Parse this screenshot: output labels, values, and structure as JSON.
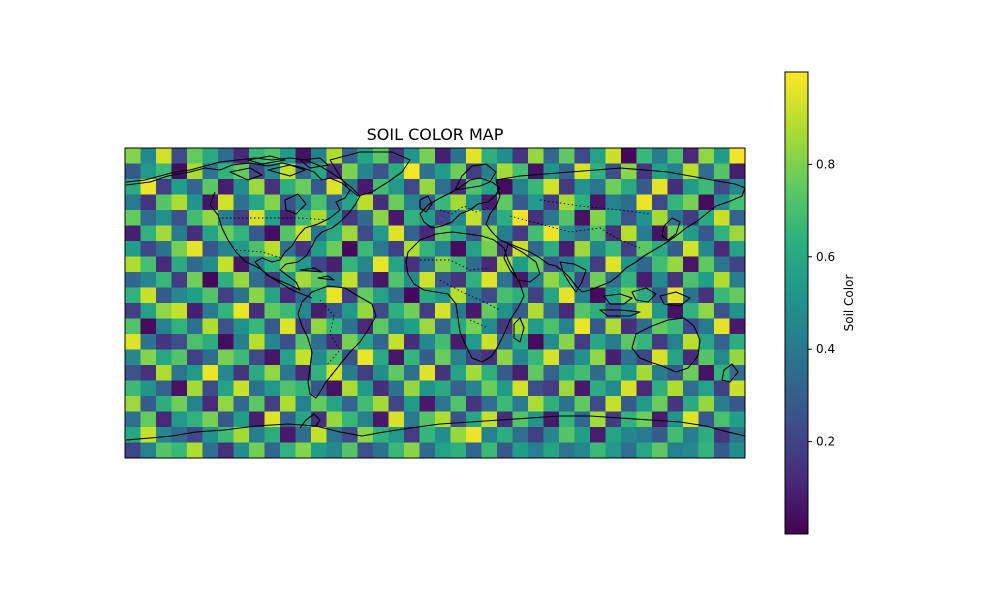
{
  "chart_data": {
    "type": "heatmap",
    "title": "SOIL COLOR MAP",
    "colorbar": {
      "label": "Soil Color",
      "ticks": [
        0.2,
        0.4,
        0.6,
        0.8
      ],
      "range": [
        0.0,
        1.0
      ],
      "colormap": "viridis"
    },
    "grid": {
      "rows": 20,
      "cols": 40,
      "values": [
        [
          0.81,
          0.47,
          0.93,
          0.23,
          0.76,
          0.61,
          0.35,
          0.12,
          0.66,
          0.72,
          0.54,
          0.05,
          0.44,
          0.88,
          0.31,
          0.58,
          0.74,
          0.16,
          0.52,
          0.79,
          0.09,
          0.38,
          0.96,
          0.63,
          0.49,
          0.15,
          0.84,
          0.34,
          0.75,
          0.22,
          0.57,
          0.92,
          0.02,
          0.67,
          0.42,
          0.71,
          0.11,
          0.83,
          0.55,
          0.98
        ],
        [
          0.27,
          0.53,
          0.68,
          0.04,
          0.87,
          0.39,
          0.65,
          0.76,
          0.21,
          0.48,
          0.91,
          0.33,
          0.59,
          0.13,
          0.8,
          0.46,
          0.26,
          0.62,
          0.99,
          0.37,
          0.55,
          0.78,
          0.18,
          0.43,
          0.86,
          0.7,
          0.05,
          0.51,
          0.32,
          0.94,
          0.64,
          0.24,
          0.82,
          0.15,
          0.57,
          0.45,
          0.89,
          0.35,
          0.73,
          0.08
        ],
        [
          0.61,
          0.97,
          0.19,
          0.56,
          0.33,
          0.74,
          0.08,
          0.49,
          0.85,
          0.14,
          0.63,
          0.77,
          0.28,
          0.95,
          0.41,
          0.07,
          0.69,
          0.53,
          0.22,
          0.84,
          0.36,
          0.12,
          0.72,
          0.58,
          0.03,
          0.45,
          0.67,
          0.93,
          0.17,
          0.52,
          0.39,
          0.78,
          0.61,
          0.29,
          0.96,
          0.13,
          0.54,
          0.68,
          0.23,
          0.47
        ],
        [
          0.42,
          0.15,
          0.73,
          0.88,
          0.52,
          0.06,
          0.93,
          0.37,
          0.59,
          0.81,
          0.25,
          0.46,
          0.71,
          0.34,
          0.58,
          0.9,
          0.13,
          0.77,
          0.45,
          0.31,
          0.67,
          0.86,
          0.49,
          0.08,
          0.75,
          0.29,
          0.54,
          0.18,
          0.87,
          0.63,
          0.06,
          0.44,
          0.35,
          0.97,
          0.22,
          0.66,
          0.79,
          0.03,
          0.48,
          0.7
        ],
        [
          0.76,
          0.35,
          0.5,
          0.25,
          0.69,
          0.83,
          0.42,
          0.18,
          0.94,
          0.57,
          0.09,
          0.68,
          0.87,
          0.52,
          0.16,
          0.34,
          0.82,
          0.07,
          0.64,
          0.56,
          0.21,
          0.47,
          0.91,
          0.35,
          0.62,
          0.98,
          0.14,
          0.4,
          0.73,
          0.05,
          0.81,
          0.58,
          0.26,
          0.51,
          0.86,
          0.38,
          0.17,
          0.61,
          0.92,
          0.32
        ],
        [
          0.09,
          0.64,
          0.86,
          0.42,
          0.13,
          0.58,
          0.77,
          0.65,
          0.28,
          0.04,
          0.73,
          0.92,
          0.39,
          0.61,
          0.85,
          0.23,
          0.53,
          0.95,
          0.31,
          0.11,
          0.74,
          0.59,
          0.26,
          0.83,
          0.43,
          0.17,
          0.69,
          0.97,
          0.5,
          0.36,
          0.72,
          0.14,
          0.89,
          0.42,
          0.05,
          0.78,
          0.55,
          0.27,
          0.64,
          0.85
        ],
        [
          0.55,
          0.21,
          0.38,
          0.79,
          0.96,
          0.27,
          0.45,
          0.53,
          0.71,
          0.89,
          0.37,
          0.16,
          0.56,
          0.77,
          0.02,
          0.68,
          0.41,
          0.19,
          0.88,
          0.65,
          0.45,
          0.03,
          0.57,
          0.79,
          0.16,
          0.92,
          0.33,
          0.62,
          0.08,
          0.85,
          0.46,
          0.67,
          0.19,
          0.74,
          0.61,
          0.29,
          0.93,
          0.47,
          0.12,
          0.58
        ],
        [
          0.88,
          0.7,
          0.12,
          0.61,
          0.34,
          0.49,
          0.91,
          0.06,
          0.44,
          0.63,
          0.79,
          0.54,
          0.21,
          0.09,
          0.66,
          0.47,
          0.97,
          0.58,
          0.14,
          0.37,
          0.82,
          0.68,
          0.35,
          0.12,
          0.87,
          0.54,
          0.76,
          0.24,
          0.41,
          0.59,
          0.18,
          0.95,
          0.52,
          0.33,
          0.69,
          0.84,
          0.06,
          0.75,
          0.39,
          0.2
        ],
        [
          0.33,
          0.46,
          0.67,
          0.18,
          0.78,
          0.02,
          0.63,
          0.84,
          0.35,
          0.17,
          0.52,
          0.86,
          0.74,
          0.43,
          0.91,
          0.29,
          0.06,
          0.72,
          0.49,
          0.93,
          0.28,
          0.16,
          0.64,
          0.95,
          0.38,
          0.07,
          0.45,
          0.83,
          0.67,
          0.22,
          0.78,
          0.36,
          0.65,
          0.08,
          0.47,
          0.15,
          0.71,
          0.56,
          0.88,
          0.43
        ],
        [
          0.64,
          0.92,
          0.28,
          0.47,
          0.56,
          0.72,
          0.19,
          0.38,
          0.82,
          0.58,
          0.11,
          0.34,
          0.62,
          0.97,
          0.19,
          0.76,
          0.57,
          0.35,
          0.02,
          0.61,
          0.52,
          0.89,
          0.41,
          0.23,
          0.7,
          0.63,
          0.19,
          0.58,
          0.96,
          0.44,
          0.03,
          0.55,
          0.81,
          0.62,
          0.27,
          0.96,
          0.38,
          0.14,
          0.67,
          0.76
        ],
        [
          0.19,
          0.57,
          0.83,
          0.91,
          0.09,
          0.41,
          0.66,
          0.97,
          0.13,
          0.75,
          0.68,
          0.47,
          0.08,
          0.28,
          0.53,
          0.84,
          0.22,
          0.63,
          0.78,
          0.18,
          0.94,
          0.41,
          0.07,
          0.76,
          0.51,
          0.29,
          0.88,
          0.36,
          0.12,
          0.73,
          0.63,
          0.24,
          0.46,
          0.91,
          0.53,
          0.05,
          0.64,
          0.83,
          0.25,
          0.51
        ],
        [
          0.72,
          0.03,
          0.44,
          0.65,
          0.37,
          0.88,
          0.25,
          0.51,
          0.67,
          0.29,
          0.95,
          0.19,
          0.83,
          0.66,
          0.38,
          0.11,
          0.74,
          0.44,
          0.56,
          0.85,
          0.33,
          0.62,
          0.79,
          0.48,
          0.16,
          0.85,
          0.54,
          0.71,
          0.45,
          0.97,
          0.28,
          0.87,
          0.13,
          0.35,
          0.75,
          0.68,
          0.22,
          0.41,
          0.96,
          0.07
        ],
        [
          0.95,
          0.38,
          0.16,
          0.24,
          0.71,
          0.62,
          0.04,
          0.43,
          0.89,
          0.46,
          0.24,
          0.73,
          0.35,
          0.14,
          0.79,
          0.58,
          0.33,
          0.91,
          0.13,
          0.47,
          0.69,
          0.08,
          0.54,
          0.92,
          0.37,
          0.6,
          0.03,
          0.49,
          0.82,
          0.18,
          0.59,
          0.42,
          0.74,
          0.66,
          0.17,
          0.44,
          0.89,
          0.59,
          0.31,
          0.62
        ],
        [
          0.47,
          0.81,
          0.59,
          0.73,
          0.19,
          0.35,
          0.79,
          0.68,
          0.22,
          0.06,
          0.57,
          0.91,
          0.48,
          0.71,
          0.25,
          0.97,
          0.61,
          0.06,
          0.66,
          0.29,
          0.77,
          0.45,
          0.21,
          0.14,
          0.82,
          0.46,
          0.67,
          0.94,
          0.27,
          0.51,
          0.83,
          0.09,
          0.37,
          0.21,
          0.94,
          0.58,
          0.11,
          0.73,
          0.48,
          0.84
        ],
        [
          0.26,
          0.14,
          0.88,
          0.39,
          0.54,
          0.97,
          0.47,
          0.15,
          0.61,
          0.83,
          0.39,
          0.12,
          0.64,
          0.93,
          0.42,
          0.18,
          0.49,
          0.75,
          0.37,
          0.95,
          0.14,
          0.58,
          0.86,
          0.63,
          0.28,
          0.09,
          0.75,
          0.32,
          0.58,
          0.69,
          0.34,
          0.71,
          0.56,
          0.86,
          0.42,
          0.27,
          0.77,
          0.05,
          0.65,
          0.35
        ],
        [
          0.68,
          0.52,
          0.31,
          0.05,
          0.86,
          0.23,
          0.58,
          0.92,
          0.37,
          0.53,
          0.72,
          0.66,
          0.27,
          0.05,
          0.87,
          0.54,
          0.13,
          0.38,
          0.84,
          0.52,
          0.61,
          0.31,
          0.46,
          0.77,
          0.55,
          0.93,
          0.24,
          0.18,
          0.85,
          0.07,
          0.62,
          0.48,
          0.94,
          0.12,
          0.63,
          0.88,
          0.36,
          0.57,
          0.19,
          0.92
        ],
        [
          0.85,
          0.29,
          0.62,
          0.78,
          0.45,
          0.12,
          0.83,
          0.34,
          0.74,
          0.19,
          0.88,
          0.44,
          0.76,
          0.58,
          0.32,
          0.69,
          0.86,
          0.21,
          0.55,
          0.07,
          0.39,
          0.72,
          0.15,
          0.36,
          0.68,
          0.41,
          0.87,
          0.63,
          0.38,
          0.75,
          0.22,
          0.91,
          0.29,
          0.54,
          0.77,
          0.16,
          0.61,
          0.84,
          0.43,
          0.27
        ],
        [
          0.37,
          0.76,
          0.11,
          0.53,
          0.64,
          0.79,
          0.27,
          0.56,
          0.08,
          0.95,
          0.31,
          0.59,
          0.14,
          0.84,
          0.67,
          0.45,
          0.07,
          0.94,
          0.41,
          0.73,
          0.88,
          0.26,
          0.59,
          0.91,
          0.13,
          0.73,
          0.52,
          0.07,
          0.66,
          0.33,
          0.86,
          0.17,
          0.65,
          0.78,
          0.08,
          0.52,
          0.95,
          0.28,
          0.71,
          0.56
        ],
        [
          0.59,
          0.91,
          0.46,
          0.34,
          0.22,
          0.51,
          0.68,
          0.86,
          0.43,
          0.62,
          0.07,
          0.35,
          0.91,
          0.39,
          0.23,
          0.82,
          0.64,
          0.53,
          0.18,
          0.66,
          0.49,
          0.84,
          0.97,
          0.44,
          0.62,
          0.36,
          0.19,
          0.46,
          0.73,
          0.56,
          0.08,
          0.58,
          0.46,
          0.41,
          0.29,
          0.69,
          0.43,
          0.62,
          0.15,
          0.39
        ],
        [
          0.21,
          0.44,
          0.73,
          0.67,
          0.88,
          0.36,
          0.14,
          0.49,
          0.78,
          0.33,
          0.65,
          0.81,
          0.56,
          0.47,
          0.73,
          0.26,
          0.38,
          0.67,
          0.82,
          0.34,
          0.57,
          0.63,
          0.33,
          0.68,
          0.27,
          0.55,
          0.44,
          0.58,
          0.39,
          0.47,
          0.68,
          0.53,
          0.36,
          0.59,
          0.74,
          0.44,
          0.47,
          0.65,
          0.28,
          0.49
        ]
      ]
    }
  },
  "colors": {
    "map_frame": "#000000",
    "coastline": "#000000",
    "background": "#ffffff"
  }
}
